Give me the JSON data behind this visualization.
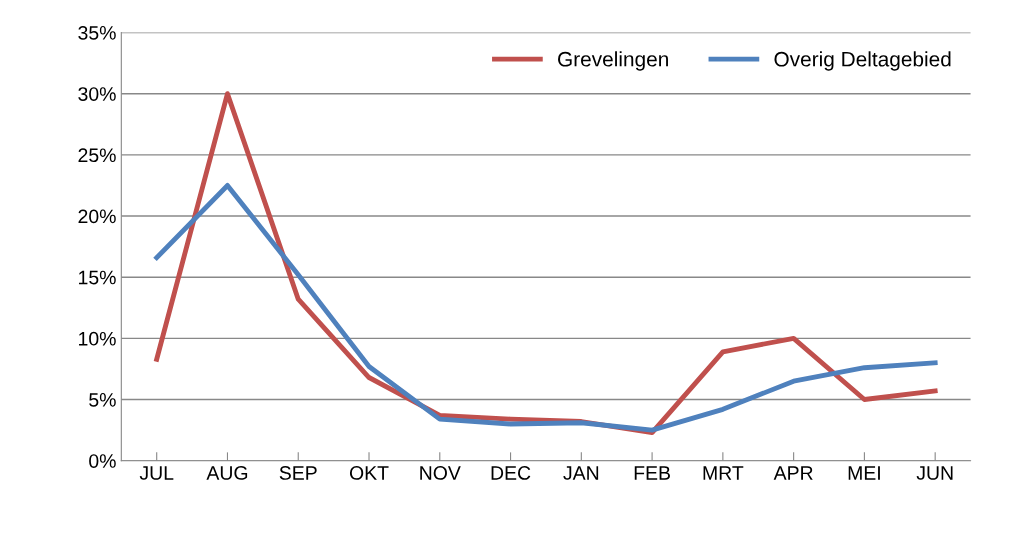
{
  "chart_data": {
    "type": "line",
    "categories": [
      "JUL",
      "AUG",
      "SEP",
      "OKT",
      "NOV",
      "DEC",
      "JAN",
      "FEB",
      "MRT",
      "APR",
      "MEI",
      "JUN"
    ],
    "series": [
      {
        "name": "Grevelingen",
        "color": "#c0504d",
        "values": [
          8.3,
          30,
          13.2,
          6.8,
          3.7,
          3.4,
          3.2,
          2.3,
          8.9,
          10,
          5,
          5.7
        ]
      },
      {
        "name": "Overig Deltagebied",
        "color": "#4f81bd",
        "values": [
          16.6,
          22.5,
          15.2,
          7.7,
          3.4,
          3.0,
          3.1,
          2.5,
          4.2,
          6.5,
          7.6,
          8.0
        ]
      }
    ],
    "ylim": [
      0,
      35
    ],
    "yticks": [
      {
        "value": 0,
        "label": "0%"
      },
      {
        "value": 5,
        "label": "5%"
      },
      {
        "value": 10,
        "label": "10%"
      },
      {
        "value": 15,
        "label": "15%"
      },
      {
        "value": 20,
        "label": "20%"
      },
      {
        "value": 25,
        "label": "25%"
      },
      {
        "value": 30,
        "label": "30%"
      },
      {
        "value": 35,
        "label": "35%"
      }
    ],
    "grid": "y",
    "legend": "top right",
    "marker": "none",
    "line_style": "solid"
  }
}
